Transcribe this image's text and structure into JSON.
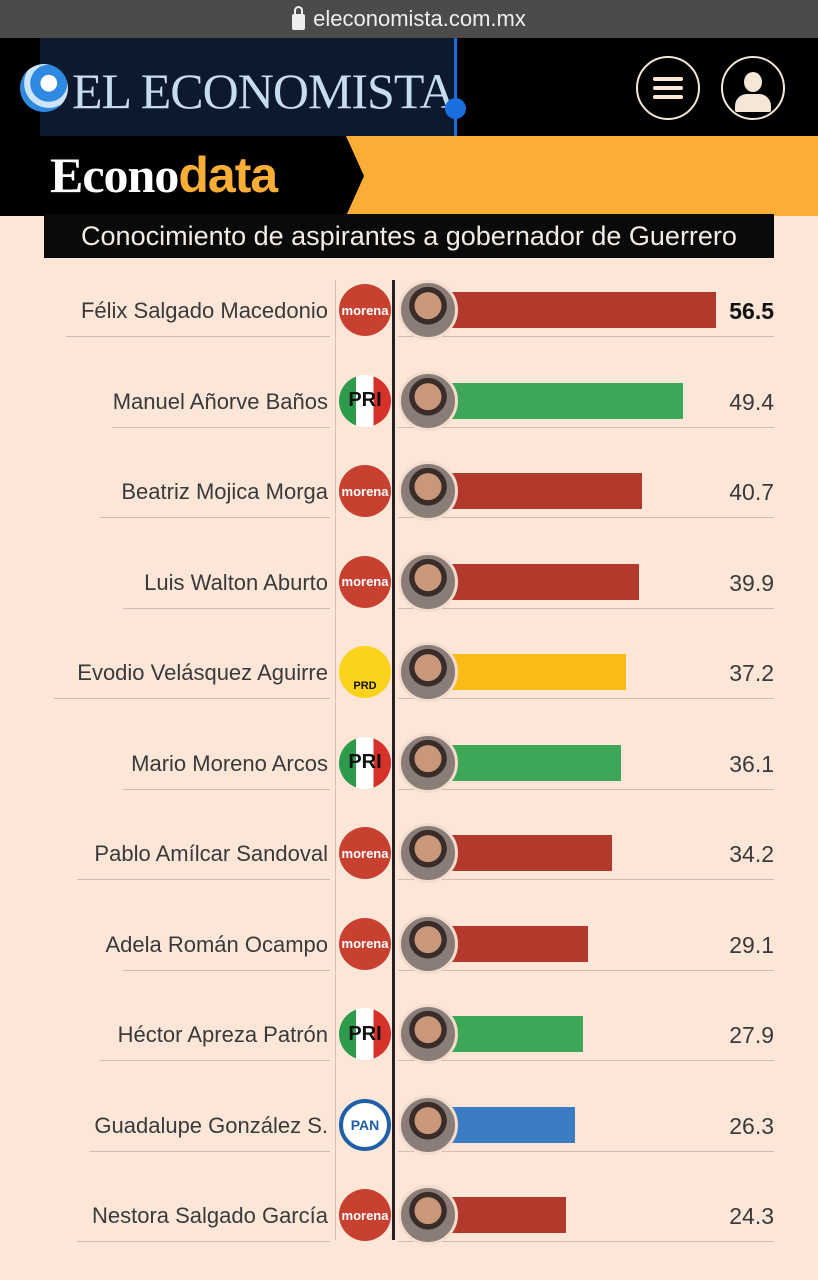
{
  "browser": {
    "url": "eleconomista.com.mx"
  },
  "header": {
    "logo": "EL ECONOMISTA",
    "section_prefix": "Econo",
    "section_suffix": "data"
  },
  "colors": {
    "morena": "#b3392c",
    "PRI": "#3ea657",
    "PRD": "#fbbd15",
    "PAN": "#3b7cc2"
  },
  "chart_data": {
    "type": "bar",
    "title": "Conocimiento de aspirantes a gobernador de Guerrero",
    "orientation": "horizontal",
    "categories": [
      "Félix Salgado Macedonio",
      "Manuel Añorve Baños",
      "Beatriz Mojica Morga",
      "Luis Walton Aburto",
      "Evodio Velásquez Aguirre",
      "Mario Moreno Arcos",
      "Pablo Amílcar Sandoval",
      "Adela Román Ocampo",
      "Héctor Apreza Patrón",
      "Guadalupe González S.",
      "Nestora Salgado García"
    ],
    "parties": [
      "morena",
      "PRI",
      "morena",
      "morena",
      "PRD",
      "PRI",
      "morena",
      "morena",
      "PRI",
      "PAN",
      "morena"
    ],
    "values": [
      56.5,
      49.4,
      40.7,
      39.9,
      37.2,
      36.1,
      34.2,
      29.1,
      27.9,
      26.3,
      24.3
    ],
    "value_labels": [
      "56.5",
      "49.4",
      "40.7",
      "39.9",
      "37.2",
      "36.1",
      "34.2",
      "29.1",
      "27.9",
      "26.3",
      "24.3"
    ],
    "xlim": [
      0,
      56.5
    ]
  }
}
